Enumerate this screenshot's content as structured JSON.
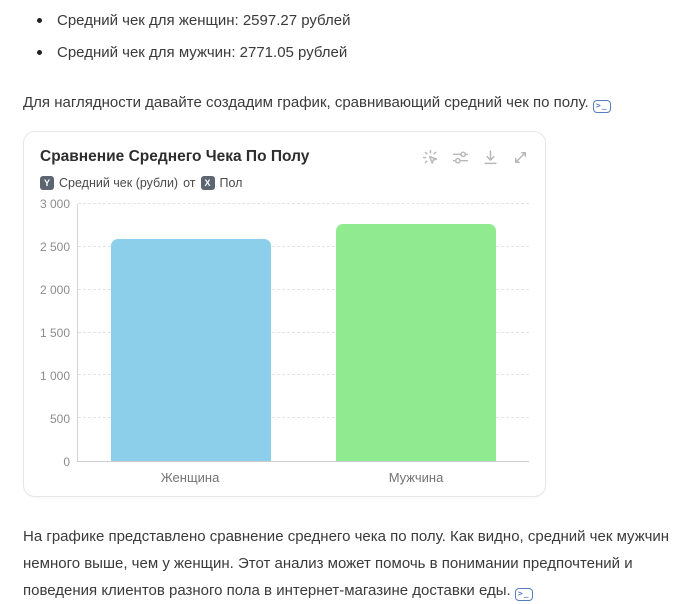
{
  "bullets": [
    "Средний чек для женщин: 2597.27 рублей",
    "Средний чек для мужчин: 2771.05 рублей"
  ],
  "intro": {
    "text": "Для наглядности давайте создадим график, сравнивающий средний чек по полу.",
    "badge_label": ">_"
  },
  "chart_card": {
    "title": "Сравнение Среднего Чека По Полу",
    "legend": {
      "y_badge": "Y",
      "y_label": "Средний чек (рубли)",
      "connector": "от",
      "x_badge": "X",
      "x_label": "Пол"
    },
    "toolbar_icons": [
      "interactive-pointer",
      "sliders",
      "download",
      "expand"
    ]
  },
  "chart_data": {
    "type": "bar",
    "title": "Сравнение Среднего Чека По Полу",
    "categories": [
      "Женщина",
      "Мужчина"
    ],
    "values": [
      2597.27,
      2771.05
    ],
    "xlabel": "Пол",
    "ylabel": "Средний чек (рубли)",
    "ylim": [
      0,
      3000
    ],
    "yticks": [
      0,
      500,
      1000,
      1500,
      2000,
      2500,
      3000
    ],
    "ytick_labels": [
      "0",
      "500",
      "1 000",
      "1 500",
      "2 000",
      "2 500",
      "3 000"
    ],
    "bar_colors": [
      "#8bcfeb",
      "#90eb90"
    ],
    "grid": "horizontal-dashed",
    "legend_position": "top-left"
  },
  "outro": {
    "text": "На графике представлено сравнение среднего чека по полу. Как видно, средний чек мужчин немного выше, чем у женщин. Этот анализ может помочь в понимании предпочтений и поведения клиентов разного пола в интернет-магазине доставки еды.",
    "badge_label": ">_"
  },
  "colors": {
    "bar_female": "#8bcfeb",
    "bar_male": "#90eb90",
    "accent_badge": "#537dbe",
    "grid": "#e3e3e3",
    "axis": "#d2d2d2",
    "text": "#3a3a3a"
  }
}
